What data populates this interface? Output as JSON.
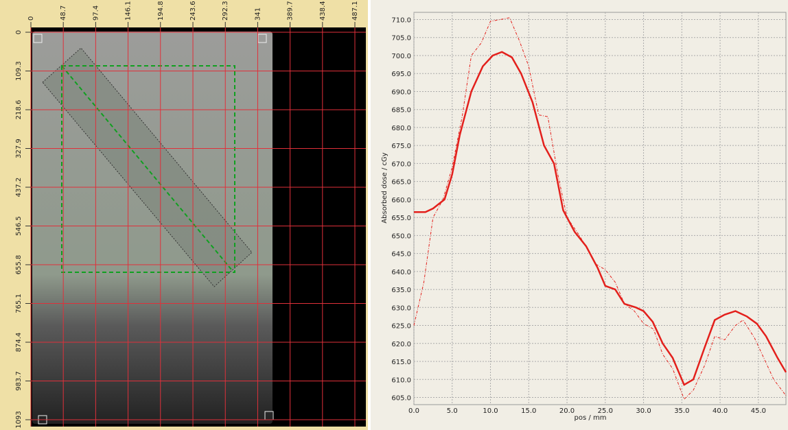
{
  "image_view": {
    "x_ruler": [
      0,
      48.7,
      97.4,
      146.1,
      194.8,
      243.6,
      292.3,
      341,
      389.7,
      438.4,
      487.1
    ],
    "y_ruler": [
      0,
      109.3,
      218.6,
      327.9,
      437.2,
      546.5,
      655.8,
      765.1,
      874.4,
      983.7,
      1093
    ]
  },
  "chart_data": {
    "type": "line",
    "x_label": "pos / mm",
    "y_label": "Absorbed dose / cGy",
    "xlim": [
      0,
      48.6
    ],
    "ylim": [
      603,
      712
    ],
    "xticks": [
      {
        "value": 0,
        "label": "0.0"
      },
      {
        "value": 5,
        "label": "5.0"
      },
      {
        "value": 10,
        "label": "10.0"
      },
      {
        "value": 15,
        "label": "15.0"
      },
      {
        "value": 20,
        "label": "20.0"
      },
      {
        "value": 25,
        "label": "25.0"
      },
      {
        "value": 30,
        "label": "30.0"
      },
      {
        "value": 35,
        "label": "35.0"
      },
      {
        "value": 40,
        "label": "40.0"
      },
      {
        "value": 45,
        "label": "45.0"
      }
    ],
    "yticks": [
      {
        "value": 605,
        "label": "605.0"
      },
      {
        "value": 610,
        "label": "610.0"
      },
      {
        "value": 615,
        "label": "615.0"
      },
      {
        "value": 620,
        "label": "620.0"
      },
      {
        "value": 625,
        "label": "625.0"
      },
      {
        "value": 630,
        "label": "630.0"
      },
      {
        "value": 635,
        "label": "635.0"
      },
      {
        "value": 640,
        "label": "640.0"
      },
      {
        "value": 645,
        "label": "645.0"
      },
      {
        "value": 650,
        "label": "650.0"
      },
      {
        "value": 655,
        "label": "655.0"
      },
      {
        "value": 660,
        "label": "660.0"
      },
      {
        "value": 665,
        "label": "665.0"
      },
      {
        "value": 670,
        "label": "670.0"
      },
      {
        "value": 675,
        "label": "675.0"
      },
      {
        "value": 680,
        "label": "680.0"
      },
      {
        "value": 685,
        "label": "685.0"
      },
      {
        "value": 690,
        "label": "690.0"
      },
      {
        "value": 695,
        "label": "695.0"
      },
      {
        "value": 700,
        "label": "700.0"
      },
      {
        "value": 705,
        "label": "705.0"
      },
      {
        "value": 710,
        "label": "710.0"
      }
    ],
    "grid": true,
    "series": [
      {
        "color": "#e3201c",
        "style": "solid",
        "x": [
          0,
          1.5,
          2.5,
          4,
          5,
          6,
          7.5,
          9,
          10.3,
          11.5,
          12.8,
          14,
          15.5,
          17,
          18.3,
          19.5,
          21,
          22.5,
          24,
          25,
          26.3,
          27.5,
          29,
          30,
          31.2,
          32.5,
          33.8,
          35.3,
          36.5,
          38,
          39.3,
          40.6,
          42,
          43.5,
          44.8,
          46,
          47.5,
          48.6
        ],
        "values": [
          656.5,
          656.5,
          657.5,
          660,
          667,
          678,
          690,
          697,
          700,
          701,
          699.5,
          695,
          687,
          675,
          670,
          657,
          651,
          647,
          641,
          636,
          635,
          631,
          630,
          629,
          626,
          620,
          616,
          608.5,
          610,
          619,
          626.5,
          628,
          629,
          627.5,
          625.5,
          622,
          616,
          612
        ]
      },
      {
        "color": "#e3201c",
        "style": "dashed",
        "x": [
          0,
          1.3,
          2.5,
          3.8,
          5,
          6.3,
          7.5,
          8.8,
          10,
          11.3,
          12.5,
          13.8,
          15,
          16.3,
          17.5,
          18.8,
          20,
          21.3,
          22.5,
          23.8,
          25,
          26.3,
          27.5,
          28.8,
          30,
          31.3,
          32.5,
          33.8,
          35.3,
          36.5,
          38,
          39.3,
          40.6,
          42,
          43,
          44.5,
          45.7,
          47,
          48.6
        ],
        "values": [
          625,
          637,
          655,
          660,
          669,
          683,
          700,
          703.5,
          709.5,
          710,
          710.5,
          704,
          697,
          683.5,
          683,
          667,
          655,
          651,
          647,
          642,
          640.5,
          637,
          631,
          629,
          625.5,
          624,
          617,
          613,
          604.5,
          607,
          614,
          622,
          621,
          625,
          626.5,
          621.5,
          616,
          610,
          605.5
        ]
      }
    ]
  }
}
